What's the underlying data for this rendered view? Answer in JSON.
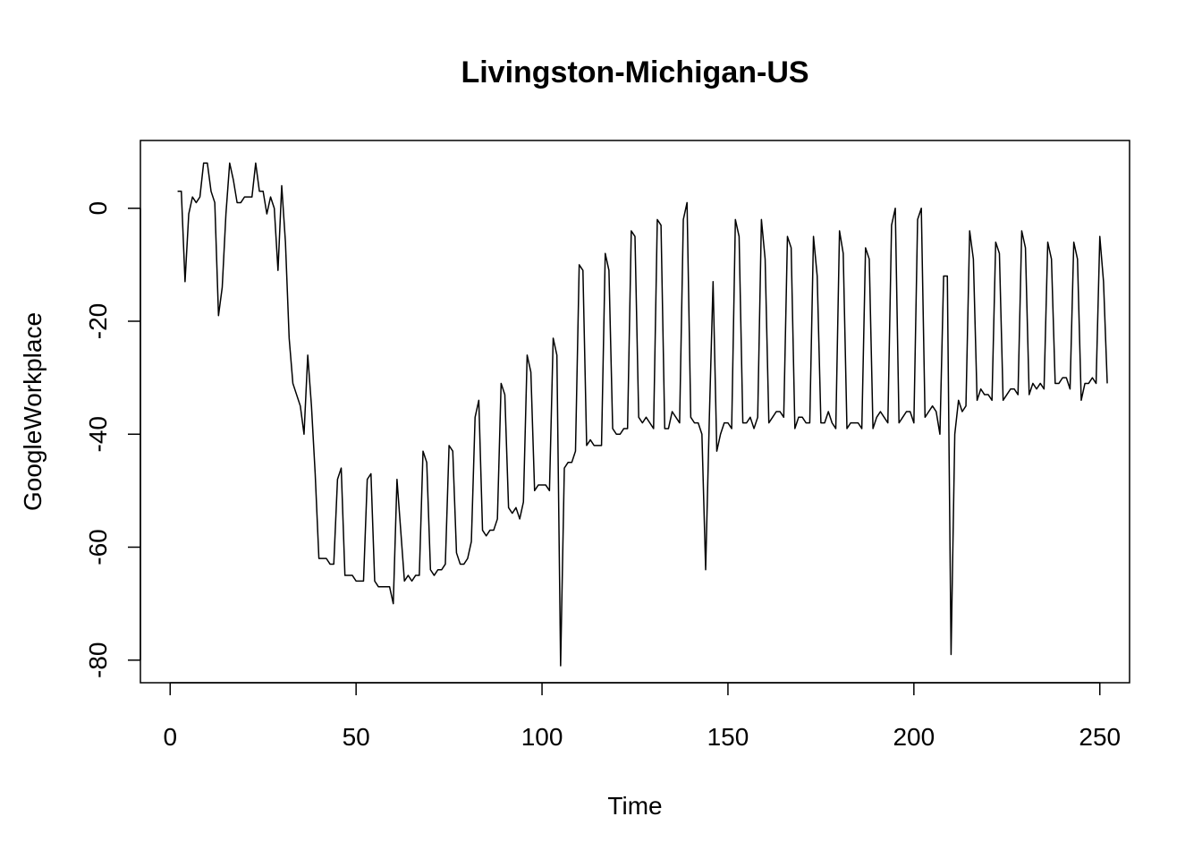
{
  "chart_data": {
    "type": "line",
    "title": "Livingston-Michigan-US",
    "xlabel": "Time",
    "ylabel": "GoogleWorkplace",
    "xlim": [
      -8,
      258
    ],
    "ylim": [
      -84,
      12
    ],
    "xticks": [
      0,
      50,
      100,
      150,
      200,
      250
    ],
    "yticks": [
      0,
      -20,
      -40,
      -60,
      -80
    ],
    "grid": false,
    "line_color": "#000000",
    "series": [
      {
        "x_start": 2,
        "values": [
          3,
          3,
          -13,
          -1,
          2,
          1,
          2,
          8,
          8,
          3,
          1,
          -19,
          -14,
          -1,
          8,
          5,
          1,
          1,
          2,
          2,
          2,
          8,
          3,
          3,
          -1,
          2,
          0,
          -11,
          4,
          -6,
          -23,
          -31,
          -33,
          -35,
          -40,
          -26,
          -35,
          -47,
          -62,
          -62,
          -62,
          -63,
          -63,
          -48,
          -46,
          -65,
          -65,
          -65,
          -66,
          -66,
          -66,
          -48,
          -47,
          -66,
          -67,
          -67,
          -67,
          -67,
          -70,
          -48,
          -57,
          -66,
          -65,
          -66,
          -65,
          -65,
          -43,
          -45,
          -64,
          -65,
          -64,
          -64,
          -63,
          -42,
          -43,
          -61,
          -63,
          -63,
          -62,
          -59,
          -37,
          -34,
          -57,
          -58,
          -57,
          -57,
          -55,
          -31,
          -33,
          -53,
          -54,
          -53,
          -55,
          -52,
          -26,
          -29,
          -50,
          -49,
          -49,
          -49,
          -50,
          -23,
          -26,
          -81,
          -46,
          -45,
          -45,
          -43,
          -10,
          -11,
          -42,
          -41,
          -42,
          -42,
          -42,
          -8,
          -11,
          -39,
          -40,
          -40,
          -39,
          -39,
          -4,
          -5,
          -37,
          -38,
          -37,
          -38,
          -39,
          -2,
          -3,
          -39,
          -39,
          -36,
          -37,
          -38,
          -2,
          1,
          -37,
          -38,
          -38,
          -40,
          -64,
          -37,
          -13,
          -43,
          -40,
          -38,
          -38,
          -39,
          -2,
          -5,
          -38,
          -38,
          -37,
          -39,
          -37,
          -2,
          -9,
          -38,
          -37,
          -36,
          -36,
          -37,
          -5,
          -7,
          -39,
          -37,
          -37,
          -38,
          -38,
          -5,
          -12,
          -38,
          -38,
          -36,
          -38,
          -39,
          -4,
          -8,
          -39,
          -38,
          -38,
          -38,
          -39,
          -7,
          -9,
          -39,
          -37,
          -36,
          -37,
          -38,
          -3,
          0,
          -38,
          -37,
          -36,
          -36,
          -38,
          -2,
          0,
          -37,
          -36,
          -35,
          -36,
          -40,
          -12,
          -12,
          -79,
          -40,
          -34,
          -36,
          -35,
          -4,
          -9,
          -34,
          -32,
          -33,
          -33,
          -34,
          -6,
          -8,
          -34,
          -33,
          -32,
          -32,
          -33,
          -4,
          -7,
          -33,
          -31,
          -32,
          -31,
          -32,
          -6,
          -9,
          -31,
          -31,
          -30,
          -30,
          -32,
          -6,
          -9,
          -34,
          -31,
          -31,
          -30,
          -31,
          -5,
          -13,
          -31
        ]
      }
    ]
  }
}
